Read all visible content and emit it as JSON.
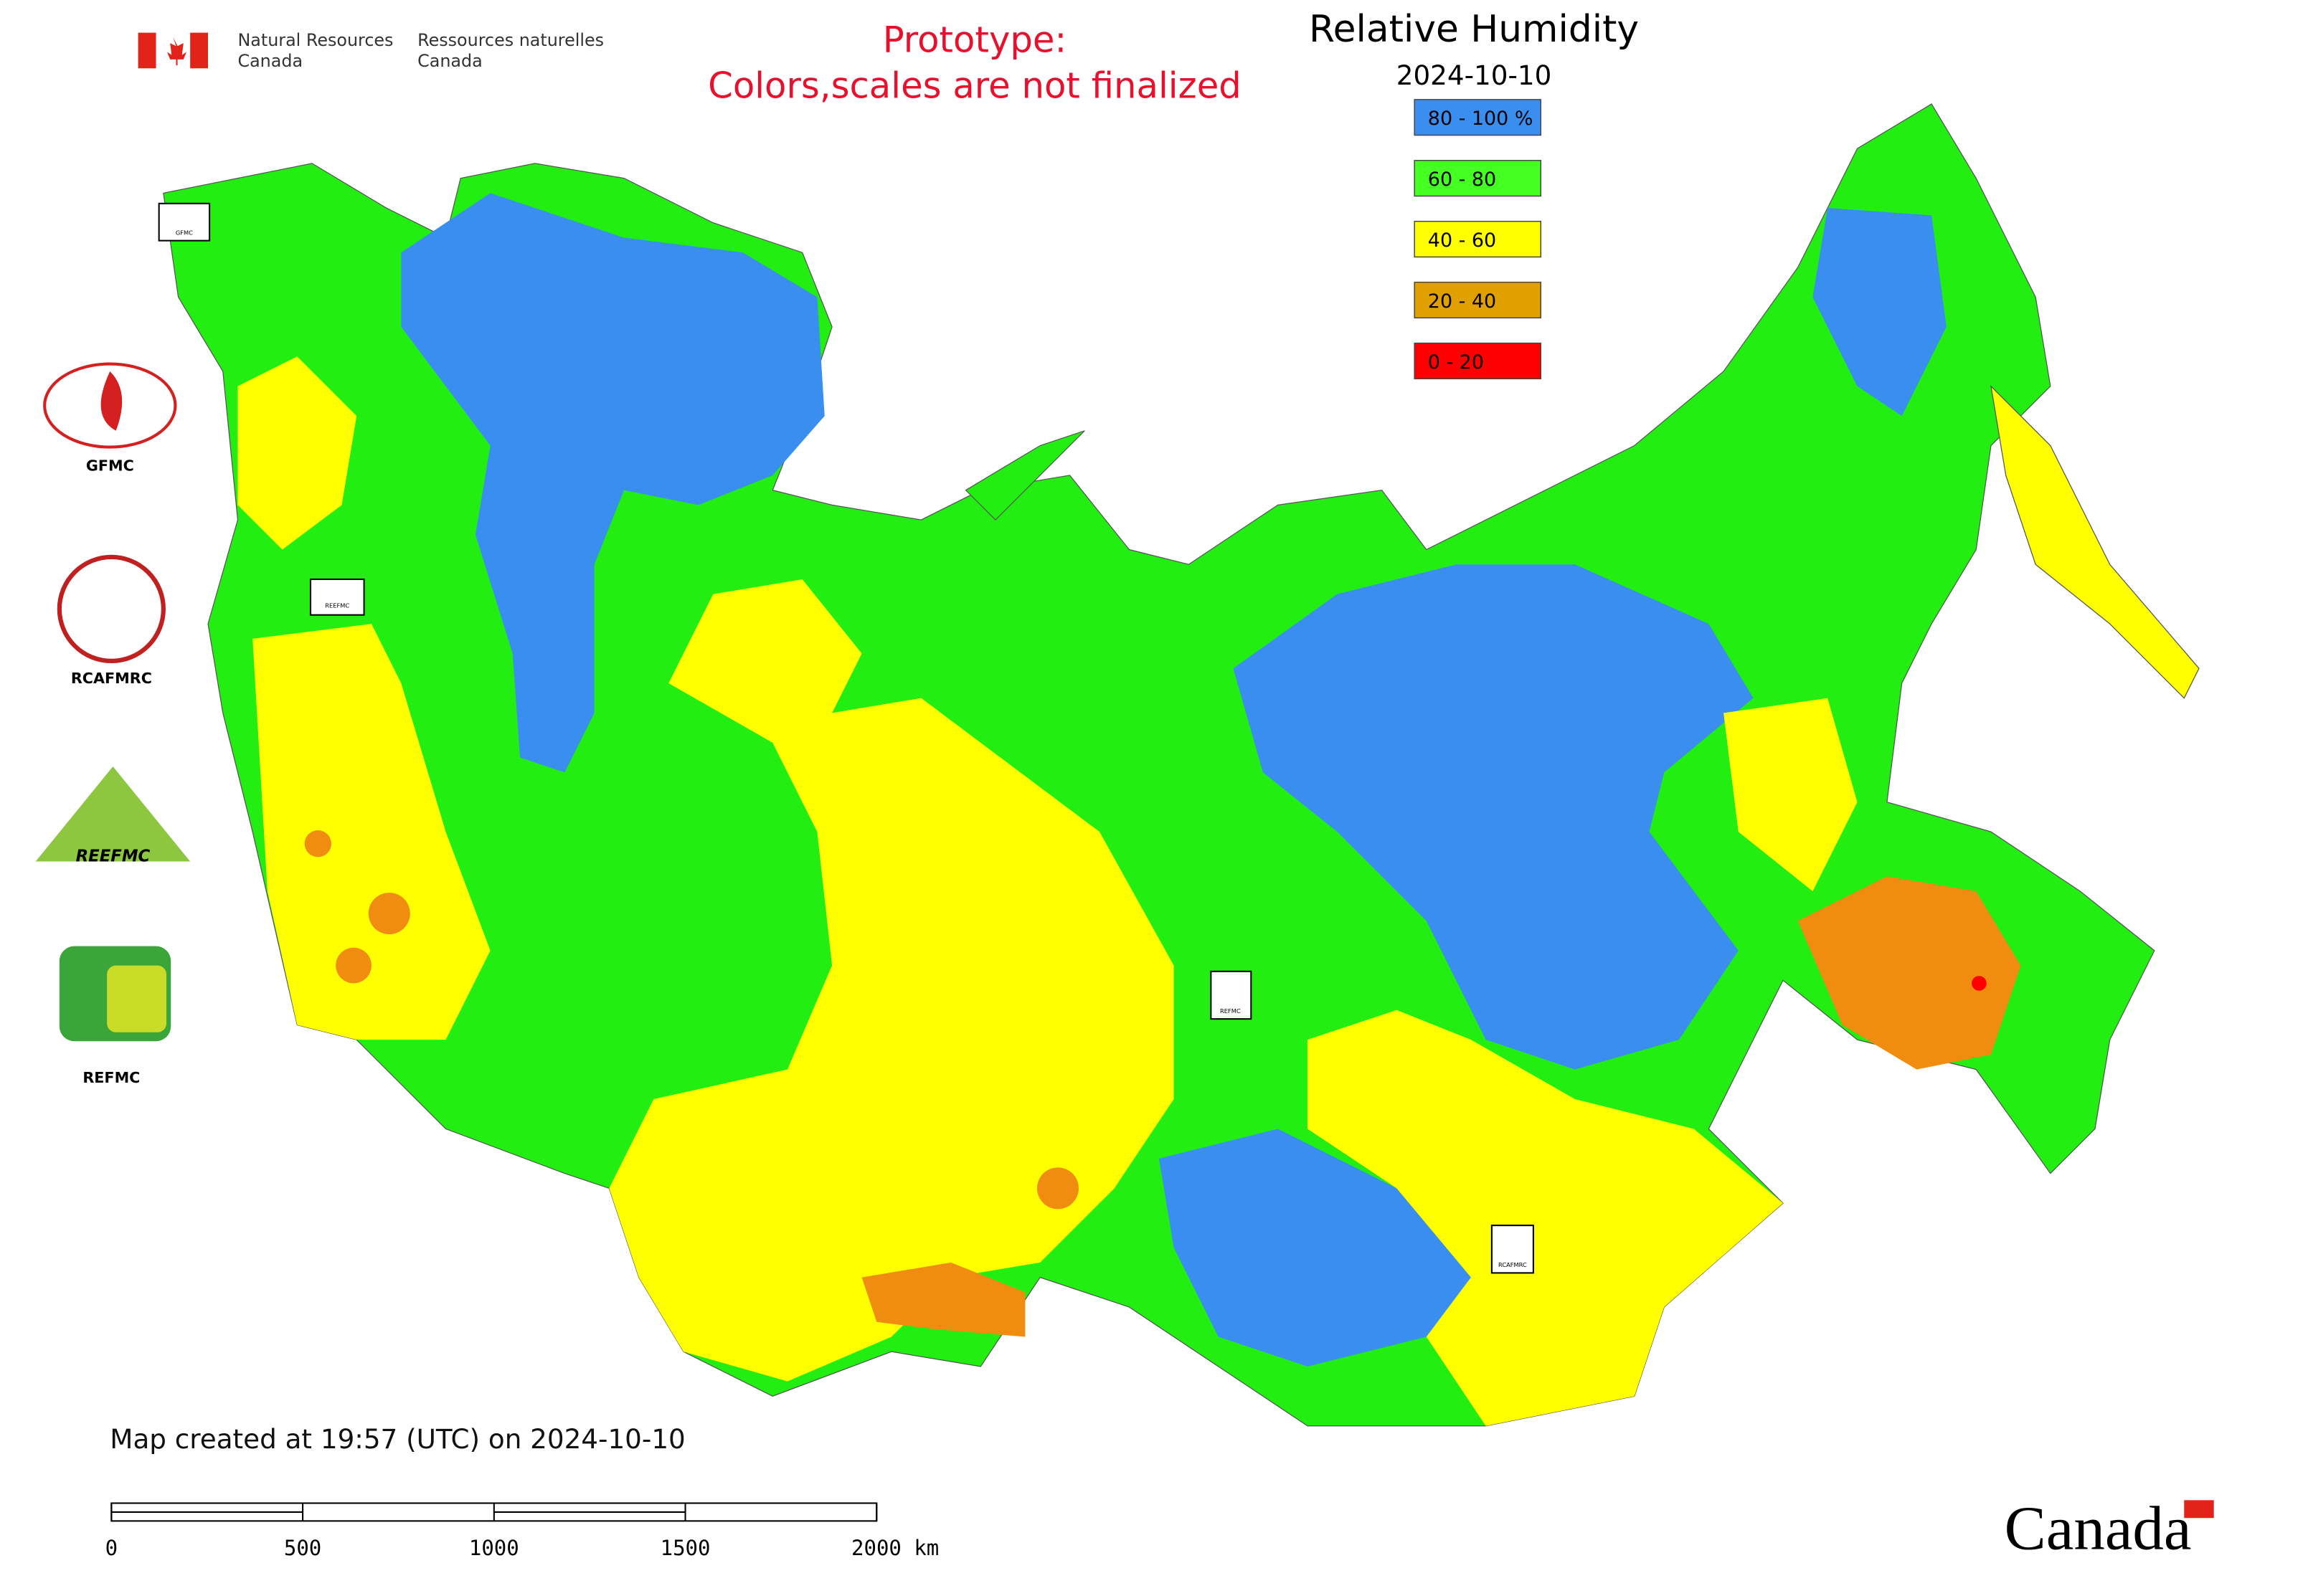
{
  "header": {
    "department_en": [
      "Natural Resources",
      "Canada"
    ],
    "department_fr": [
      "Ressources naturelles",
      "Canada"
    ],
    "notice": [
      "Prototype:",
      "Colors,scales are not finalized"
    ]
  },
  "map": {
    "title": "Relative Humidity",
    "date": "2024-10-10",
    "legend": [
      {
        "label": "80 - 100 %",
        "color": "#3a8ef0"
      },
      {
        "label": "60 - 80",
        "color": "#44ff22"
      },
      {
        "label": "40 - 60",
        "color": "#ffff00"
      },
      {
        "label": "20 - 40",
        "color": "#e0a000"
      },
      {
        "label": "0 - 20",
        "color": "#ff0000"
      }
    ]
  },
  "logos": [
    "GFMC",
    "RCAFMRC",
    "REEFMC",
    "REFMC"
  ],
  "footer": {
    "created": "Map created at 19:57 (UTC) on 2024-10-10",
    "wordmark": "Canada"
  },
  "scale_bar": {
    "ticks": [
      0,
      500,
      1000,
      1500,
      {
        "value": 2000,
        "label": "2000 km"
      }
    ]
  }
}
